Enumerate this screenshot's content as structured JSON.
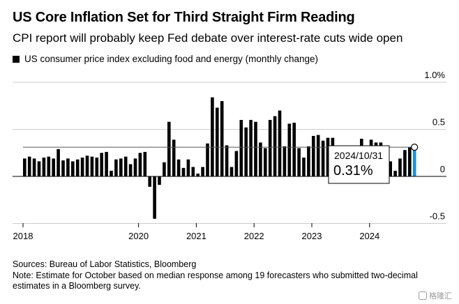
{
  "header": {
    "title": "US Core Inflation Set for Third Straight Firm Reading",
    "subtitle": "CPI report will probably keep Fed debate over interest-rate cuts wide open"
  },
  "legend": {
    "label": "US consumer price index excluding food and energy (monthly change)"
  },
  "callout": {
    "date": "2024/10/31",
    "value": "0.31%"
  },
  "footer": {
    "sources": "Sources: Bureau of Labor Statistics, Bloomberg",
    "note_line1": "Note: Estimate for October based on median response among 19 forecasters who submitted two-decimal",
    "note_line2": "estimates in a Bloomberg survey."
  },
  "watermark": {
    "text": "格隆汇",
    "icon": "gelonghui-logo-icon"
  },
  "colors": {
    "bar": "#000000",
    "highlight": "#1a8fe0",
    "gridline": "#cccccc",
    "refline": "#555555"
  },
  "chart_data": {
    "type": "bar",
    "title": "US consumer price index excluding food and energy (monthly change)",
    "xlabel": "",
    "ylabel": "",
    "ylim": [
      -0.5,
      1.0
    ],
    "y_ticks": [
      {
        "value": 1.0,
        "label": "1.0%"
      },
      {
        "value": 0.5,
        "label": "0.5"
      },
      {
        "value": 0,
        "label": "0"
      },
      {
        "value": -0.5,
        "label": "-0.5"
      }
    ],
    "x_ticks": [
      "2018",
      "2020",
      "2021",
      "2022",
      "2023",
      "2024"
    ],
    "reference_line": 0.31,
    "categories": [
      "2018-01",
      "2018-02",
      "2018-03",
      "2018-04",
      "2018-05",
      "2018-06",
      "2018-07",
      "2018-08",
      "2018-09",
      "2018-10",
      "2018-11",
      "2018-12",
      "2019-01",
      "2019-02",
      "2019-03",
      "2019-04",
      "2019-05",
      "2019-06",
      "2019-07",
      "2019-08",
      "2019-09",
      "2019-10",
      "2019-11",
      "2019-12",
      "2020-01",
      "2020-02",
      "2020-03",
      "2020-04",
      "2020-05",
      "2020-06",
      "2020-07",
      "2020-08",
      "2020-09",
      "2020-10",
      "2020-11",
      "2020-12",
      "2021-01",
      "2021-02",
      "2021-03",
      "2021-04",
      "2021-05",
      "2021-06",
      "2021-07",
      "2021-08",
      "2021-09",
      "2021-10",
      "2021-11",
      "2021-12",
      "2022-01",
      "2022-02",
      "2022-03",
      "2022-04",
      "2022-05",
      "2022-06",
      "2022-07",
      "2022-08",
      "2022-09",
      "2022-10",
      "2022-11",
      "2022-12",
      "2023-01",
      "2023-02",
      "2023-03",
      "2023-04",
      "2023-05",
      "2023-06",
      "2023-07",
      "2023-08",
      "2023-09",
      "2023-10",
      "2023-11",
      "2023-12",
      "2024-01",
      "2024-02",
      "2024-03",
      "2024-04",
      "2024-05",
      "2024-06",
      "2024-07",
      "2024-08",
      "2024-09",
      "2024-10"
    ],
    "values": [
      0.19,
      0.21,
      0.19,
      0.16,
      0.2,
      0.21,
      0.19,
      0.29,
      0.17,
      0.19,
      0.16,
      0.18,
      0.2,
      0.22,
      0.21,
      0.2,
      0.25,
      0.26,
      0.06,
      0.18,
      0.19,
      0.21,
      0.13,
      0.19,
      0.25,
      0.26,
      -0.11,
      -0.45,
      -0.09,
      0.15,
      0.58,
      0.39,
      0.18,
      0.09,
      0.18,
      0.1,
      0.03,
      0.1,
      0.35,
      0.84,
      0.73,
      0.8,
      0.33,
      0.1,
      0.27,
      0.6,
      0.52,
      0.6,
      0.58,
      0.36,
      0.3,
      0.6,
      0.64,
      0.7,
      0.32,
      0.56,
      0.57,
      0.3,
      0.2,
      0.32,
      0.43,
      0.44,
      0.38,
      0.41,
      0.41,
      0.16,
      0.16,
      0.28,
      0.29,
      0.29,
      0.4,
      0.29,
      0.39,
      0.36,
      0.36,
      0.29,
      0.16,
      0.06,
      0.19,
      0.28,
      0.31,
      0.31
    ],
    "highlight_index": 81
  }
}
